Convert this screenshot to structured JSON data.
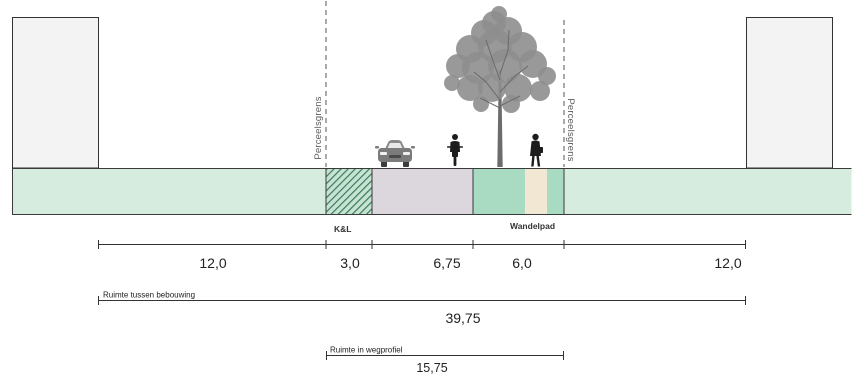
{
  "boundaries": {
    "left_label": "Perceelsgrens",
    "right_label": "Perceelsgrens"
  },
  "zones": {
    "kl_label": "K&L",
    "footpath_label": "Wandelpad"
  },
  "dimensions": {
    "segments": [
      "12,0",
      "3,0",
      "6,75",
      "6,0",
      "12,0"
    ],
    "between_buildings": {
      "label": "Ruimte tussen bebouwing",
      "value": "39,75"
    },
    "road_profile": {
      "label": "Ruimte in wegprofiel",
      "value": "15,75"
    }
  },
  "icons": {
    "car": "car-icon",
    "cyclist": "cyclist-icon",
    "tree": "tree-icon",
    "pedestrian": "pedestrian-icon"
  },
  "colors": {
    "building": "#f3f3f3",
    "ground": "#d5ecdf",
    "hatch_line": "#3c7a5b",
    "hatch_bg": "#c6e3d3",
    "road": "#dbd7dc",
    "green_zone": "#a8dbc1",
    "footpath": "#f1e7d2",
    "tree": "#8e8e8e",
    "tree_trunk": "#6c6c6c",
    "figure": "#1d1d1d"
  }
}
